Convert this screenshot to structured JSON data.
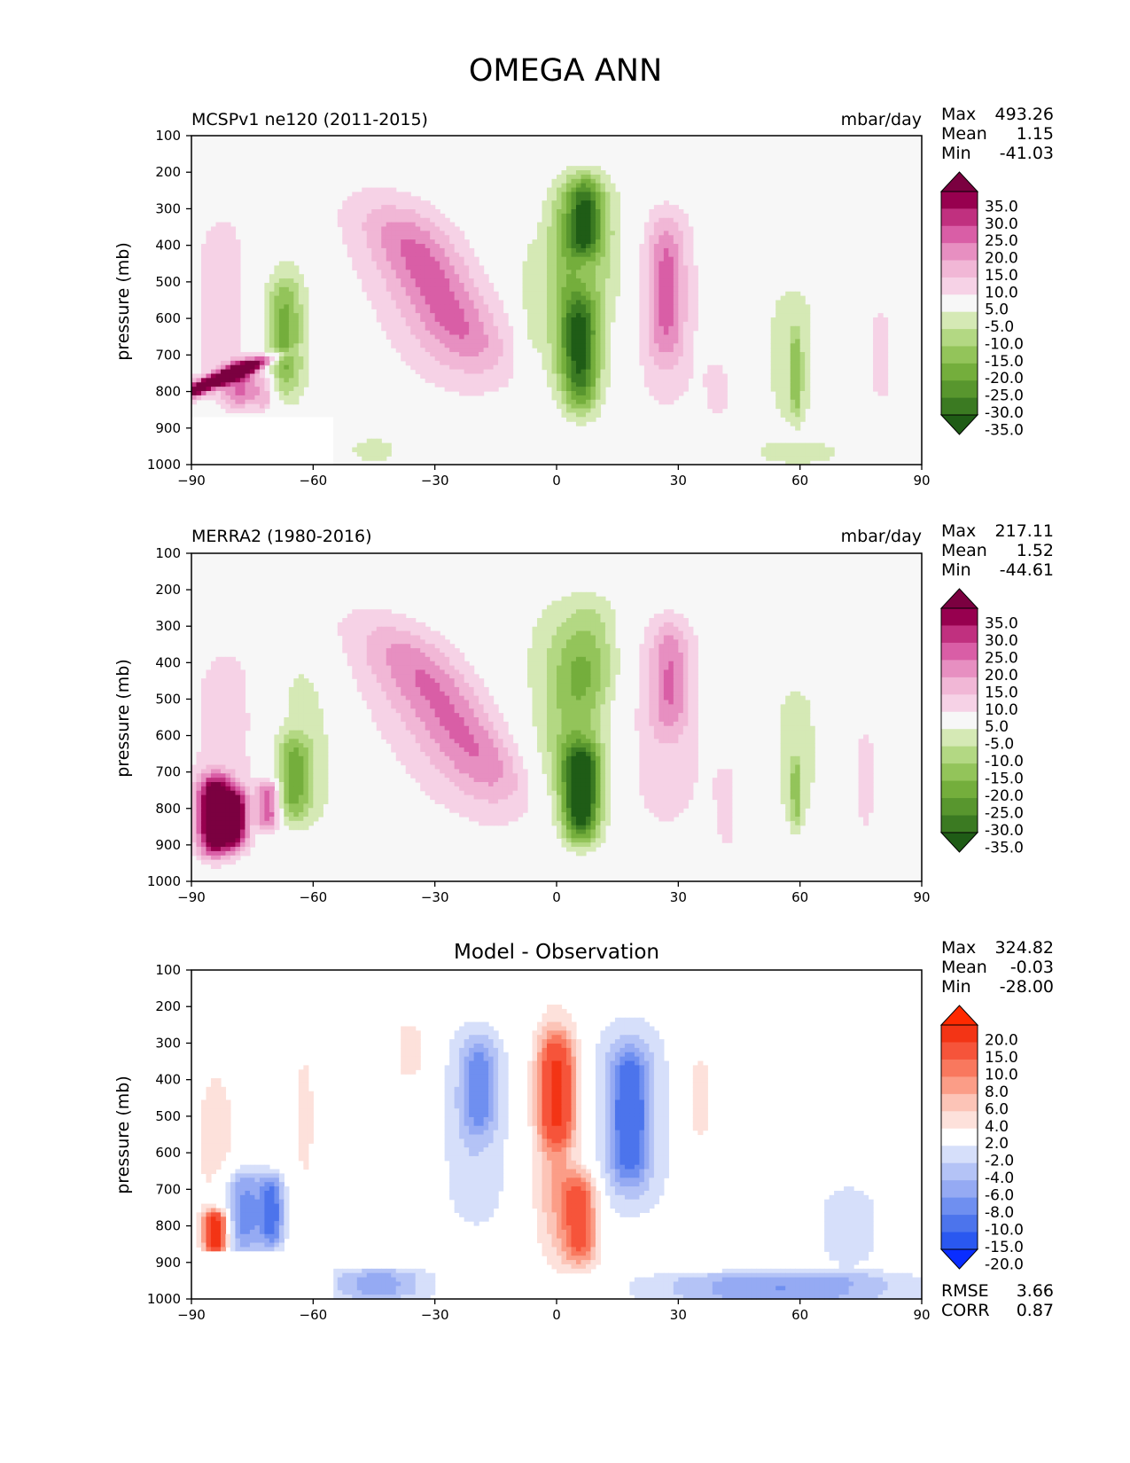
{
  "figure_title": "OMEGA ANN",
  "colors": {
    "field_levels": [
      "-35.0",
      "-30.0",
      "-25.0",
      "-20.0",
      "-15.0",
      "-10.0",
      "-5.0",
      "5.0",
      "10.0",
      "15.0",
      "20.0",
      "25.0",
      "30.0",
      "35.0"
    ],
    "field_palette": [
      "#1f5c16",
      "#3b7a22",
      "#58962e",
      "#74ae3c",
      "#93c45a",
      "#b3d883",
      "#d5e9b5",
      "#f7f7f7",
      "#f6d2e6",
      "#f1b7d6",
      "#e78fc1",
      "#d95ea6",
      "#c0307f",
      "#97004f",
      "#7b0040"
    ],
    "diff_levels": [
      "-20.0",
      "-15.0",
      "-10.0",
      "-8.0",
      "-6.0",
      "-4.0",
      "-2.0",
      "2.0",
      "4.0",
      "6.0",
      "8.0",
      "10.0",
      "15.0",
      "20.0"
    ],
    "diff_palette": [
      "#0a2dff",
      "#2a58f0",
      "#4c74ec",
      "#6f8ff0",
      "#95aaf3",
      "#b4c3f6",
      "#d6dffa",
      "#ffffff",
      "#fde1db",
      "#fcc4b7",
      "#fb9d87",
      "#f9785e",
      "#f6543a",
      "#f33415",
      "#ff2a00"
    ]
  },
  "chart_data": [
    {
      "type": "heatmap",
      "title": "MCSPv1 ne120 (2011-2015)",
      "units": "mbar/day",
      "ylabel": "pressure (mb)",
      "x_ticks": [
        "−90",
        "−60",
        "−30",
        "0",
        "30",
        "60",
        "90"
      ],
      "y_ticks": [
        "100",
        "200",
        "300",
        "400",
        "500",
        "600",
        "700",
        "800",
        "900",
        "1000"
      ],
      "xlim": [
        -90,
        90
      ],
      "ylim": [
        1000,
        100
      ],
      "stats": [
        {
          "label": "Max",
          "value": "493.26"
        },
        {
          "label": "Mean",
          "value": "1.15"
        },
        {
          "label": "Min",
          "value": "-41.03"
        }
      ],
      "colorbar_levels": [
        "35.0",
        "30.0",
        "25.0",
        "20.0",
        "15.0",
        "10.0",
        "5.0",
        "-5.0",
        "-10.0",
        "-15.0",
        "-20.0",
        "-25.0",
        "-30.0",
        "-35.0"
      ],
      "blobs": [
        {
          "lat": -33,
          "p": 530,
          "w": 12,
          "h": 620,
          "v": 9,
          "tilt": 0.004
        },
        {
          "lat": -29,
          "p": 520,
          "w": 7,
          "h": 420,
          "v": 14,
          "tilt": 0.005
        },
        {
          "lat": -68,
          "p": 590,
          "w": 6,
          "h": 560,
          "v": -8,
          "tilt": 0
        },
        {
          "lat": -67,
          "p": 650,
          "w": 3,
          "h": 320,
          "v": -17,
          "tilt": 0
        },
        {
          "lat": -80,
          "p": 560,
          "w": 10,
          "h": 620,
          "v": 7,
          "tilt": 0
        },
        {
          "lat": -84,
          "p": 770,
          "w": 3,
          "h": 140,
          "v": 45,
          "tilt": -0.02
        },
        {
          "lat": -78,
          "p": 780,
          "w": 3,
          "h": 130,
          "v": 18,
          "tilt": 0
        },
        {
          "lat": -72,
          "p": 800,
          "w": 2,
          "h": 110,
          "v": 13,
          "tilt": 0
        },
        {
          "lat": -7,
          "p": 620,
          "w": 2,
          "h": 500,
          "v": -6,
          "tilt": 0
        },
        {
          "lat": 2,
          "p": 520,
          "w": 4,
          "h": 560,
          "v": -10,
          "tilt": 0
        },
        {
          "lat": 7,
          "p": 320,
          "w": 3,
          "h": 220,
          "v": -24,
          "tilt": 0
        },
        {
          "lat": 6,
          "p": 700,
          "w": 3,
          "h": 320,
          "v": -24,
          "tilt": 0
        },
        {
          "lat": 6,
          "p": 520,
          "w": 6,
          "h": 640,
          "v": -10,
          "tilt": 0
        },
        {
          "lat": 12,
          "p": 400,
          "w": 5,
          "h": 360,
          "v": -5,
          "tilt": 0
        },
        {
          "lat": 27,
          "p": 570,
          "w": 6,
          "h": 600,
          "v": 9,
          "tilt": 0
        },
        {
          "lat": 27,
          "p": 520,
          "w": 3,
          "h": 380,
          "v": 13,
          "tilt": 0
        },
        {
          "lat": 40,
          "p": 800,
          "w": 3,
          "h": 180,
          "v": 6,
          "tilt": 0
        },
        {
          "lat": 58,
          "p": 700,
          "w": 6,
          "h": 460,
          "v": -7,
          "tilt": 0
        },
        {
          "lat": 59,
          "p": 750,
          "w": 1,
          "h": 240,
          "v": -14,
          "tilt": 0
        },
        {
          "lat": 80,
          "p": 700,
          "w": 2,
          "h": 260,
          "v": 9,
          "tilt": 0
        },
        {
          "lat": -45,
          "p": 960,
          "w": 8,
          "h": 80,
          "v": -6,
          "tilt": 0
        },
        {
          "lat": 60,
          "p": 970,
          "w": 12,
          "h": 70,
          "v": -6,
          "tilt": 0
        }
      ],
      "mask": true
    },
    {
      "type": "heatmap",
      "title": "MERRA2 (1980-2016)",
      "units": "mbar/day",
      "ylabel": "pressure (mb)",
      "x_ticks": [
        "−90",
        "−60",
        "−30",
        "0",
        "30",
        "60",
        "90"
      ],
      "y_ticks": [
        "100",
        "200",
        "300",
        "400",
        "500",
        "600",
        "700",
        "800",
        "900",
        "1000"
      ],
      "xlim": [
        -90,
        90
      ],
      "ylim": [
        1000,
        100
      ],
      "stats": [
        {
          "label": "Max",
          "value": "217.11"
        },
        {
          "label": "Mean",
          "value": "1.52"
        },
        {
          "label": "Min",
          "value": "-44.61"
        }
      ],
      "colorbar_levels": [
        "35.0",
        "30.0",
        "25.0",
        "20.0",
        "15.0",
        "10.0",
        "5.0",
        "-5.0",
        "-10.0",
        "-15.0",
        "-20.0",
        "-25.0",
        "-30.0",
        "-35.0"
      ],
      "blobs": [
        {
          "lat": -31,
          "p": 560,
          "w": 13,
          "h": 650,
          "v": 9,
          "tilt": 0.006
        },
        {
          "lat": -26,
          "p": 540,
          "w": 7,
          "h": 460,
          "v": 13,
          "tilt": 0.006
        },
        {
          "lat": -63,
          "p": 600,
          "w": 7,
          "h": 560,
          "v": -9,
          "tilt": 0
        },
        {
          "lat": -65,
          "p": 720,
          "w": 3,
          "h": 240,
          "v": -17,
          "tilt": 0
        },
        {
          "lat": -80,
          "p": 620,
          "w": 10,
          "h": 640,
          "v": 7,
          "tilt": 0
        },
        {
          "lat": -84,
          "p": 820,
          "w": 3,
          "h": 220,
          "v": 45,
          "tilt": 0
        },
        {
          "lat": -79,
          "p": 830,
          "w": 2,
          "h": 160,
          "v": 30,
          "tilt": 0
        },
        {
          "lat": -71,
          "p": 790,
          "w": 2,
          "h": 140,
          "v": 25,
          "tilt": 0
        },
        {
          "lat": 0,
          "p": 520,
          "w": 7,
          "h": 620,
          "v": -8,
          "tilt": 0
        },
        {
          "lat": 6,
          "p": 760,
          "w": 3,
          "h": 260,
          "v": -33,
          "tilt": 0
        },
        {
          "lat": 6,
          "p": 600,
          "w": 5,
          "h": 600,
          "v": -13,
          "tilt": 0
        },
        {
          "lat": 10,
          "p": 350,
          "w": 5,
          "h": 300,
          "v": -7,
          "tilt": 0
        },
        {
          "lat": 27,
          "p": 560,
          "w": 7,
          "h": 620,
          "v": 9,
          "tilt": 0
        },
        {
          "lat": 28,
          "p": 440,
          "w": 3,
          "h": 300,
          "v": 12,
          "tilt": 0
        },
        {
          "lat": 59,
          "p": 650,
          "w": 5,
          "h": 440,
          "v": -7,
          "tilt": 0
        },
        {
          "lat": 59,
          "p": 760,
          "w": 1,
          "h": 200,
          "v": -12,
          "tilt": 0
        },
        {
          "lat": 76,
          "p": 720,
          "w": 4,
          "h": 440,
          "v": 5.5,
          "tilt": 0
        },
        {
          "lat": 42,
          "p": 800,
          "w": 3,
          "h": 300,
          "v": 5.5,
          "tilt": 0
        }
      ],
      "mask": false
    },
    {
      "type": "heatmap",
      "title": "Model - Observation",
      "units": "",
      "ylabel": "pressure (mb)",
      "x_ticks": [
        "−90",
        "−60",
        "−30",
        "0",
        "30",
        "60",
        "90"
      ],
      "y_ticks": [
        "100",
        "200",
        "300",
        "400",
        "500",
        "600",
        "700",
        "800",
        "900",
        "1000"
      ],
      "xlim": [
        -90,
        90
      ],
      "ylim": [
        1000,
        100
      ],
      "stats": [
        {
          "label": "Max",
          "value": "324.82"
        },
        {
          "label": "Mean",
          "value": "-0.03"
        },
        {
          "label": "Min",
          "value": "-28.00"
        }
      ],
      "bottom_stats": [
        {
          "label": "RMSE",
          "value": "3.66"
        },
        {
          "label": "CORR",
          "value": "0.87"
        }
      ],
      "colorbar_levels": [
        "20.0",
        "15.0",
        "10.0",
        "8.0",
        "6.0",
        "4.0",
        "2.0",
        "-2.0",
        "-4.0",
        "-6.0",
        "-8.0",
        "-10.0",
        "-15.0",
        "-20.0"
      ],
      "blobs": [
        {
          "lat": 0,
          "p": 550,
          "w": 4,
          "h": 700,
          "v": 6,
          "tilt": 0
        },
        {
          "lat": 0,
          "p": 430,
          "w": 3,
          "h": 300,
          "v": 11,
          "tilt": 0
        },
        {
          "lat": 6,
          "p": 780,
          "w": 3,
          "h": 260,
          "v": 11,
          "tilt": 0
        },
        {
          "lat": 18,
          "p": 500,
          "w": 7,
          "h": 560,
          "v": -5,
          "tilt": 0
        },
        {
          "lat": 18,
          "p": 500,
          "w": 3,
          "h": 360,
          "v": -9,
          "tilt": 0
        },
        {
          "lat": -20,
          "p": 520,
          "w": 6,
          "h": 600,
          "v": -4,
          "tilt": 0
        },
        {
          "lat": -19,
          "p": 420,
          "w": 3,
          "h": 260,
          "v": -6,
          "tilt": 0
        },
        {
          "lat": -36,
          "p": 320,
          "w": 3,
          "h": 180,
          "v": 3,
          "tilt": 0
        },
        {
          "lat": 35,
          "p": 450,
          "w": 3,
          "h": 300,
          "v": 2.8,
          "tilt": 0
        },
        {
          "lat": -84,
          "p": 600,
          "w": 4,
          "h": 500,
          "v": 3,
          "tilt": 0
        },
        {
          "lat": -77,
          "p": 760,
          "w": 4,
          "h": 240,
          "v": -9,
          "tilt": 0
        },
        {
          "lat": -70,
          "p": 760,
          "w": 2,
          "h": 200,
          "v": -10,
          "tilt": 0
        },
        {
          "lat": -84,
          "p": 820,
          "w": 2,
          "h": 120,
          "v": 18,
          "tilt": 0
        },
        {
          "lat": -44,
          "p": 960,
          "w": 9,
          "h": 90,
          "v": -7,
          "tilt": 0
        },
        {
          "lat": 55,
          "p": 970,
          "w": 22,
          "h": 90,
          "v": -8,
          "tilt": 0
        },
        {
          "lat": 72,
          "p": 800,
          "w": 7,
          "h": 260,
          "v": -3,
          "tilt": 0
        },
        {
          "lat": -62,
          "p": 500,
          "w": 2,
          "h": 400,
          "v": 2.6,
          "tilt": 0
        }
      ],
      "mask": true
    }
  ]
}
